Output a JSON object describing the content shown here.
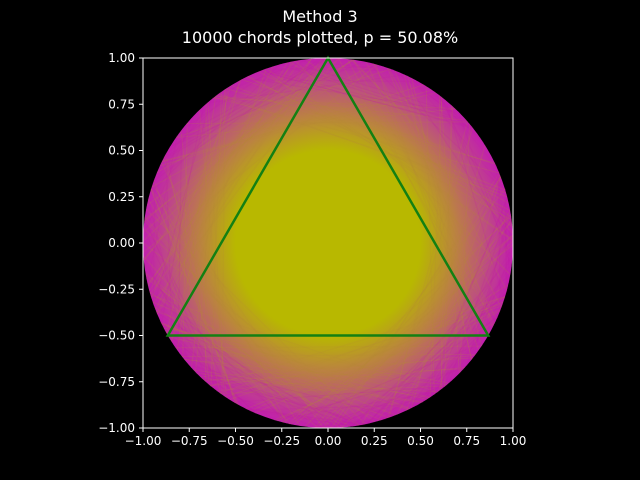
{
  "chart_data": {
    "type": "scatter",
    "title": "Method 3",
    "subtitle": "10000 chords plotted, p = 50.08%",
    "xlim": [
      -1.0,
      1.0
    ],
    "ylim": [
      -1.0,
      1.0
    ],
    "xticks": [
      "−1.00",
      "−0.75",
      "−0.50",
      "−0.25",
      "0.00",
      "0.25",
      "0.50",
      "0.75",
      "1.00"
    ],
    "yticks": [
      "−1.00",
      "−0.75",
      "−0.50",
      "−0.25",
      "0.00",
      "0.25",
      "0.50",
      "0.75",
      "1.00"
    ],
    "grid": false,
    "circle": {
      "center": [
        0,
        0
      ],
      "radius": 1.0
    },
    "inner_circle": {
      "center": [
        0,
        0
      ],
      "radius": 0.5
    },
    "triangle": [
      [
        0.0,
        1.0
      ],
      [
        -0.866,
        -0.5
      ],
      [
        0.866,
        -0.5
      ]
    ],
    "chords_plotted": 10000,
    "probability_percent": 50.08
  },
  "colors": {
    "background": "#000000",
    "longer_chord": "#b8b800",
    "shorter_chord": "#c01aa8",
    "triangle": "#138013",
    "axes": "#ffffff"
  }
}
